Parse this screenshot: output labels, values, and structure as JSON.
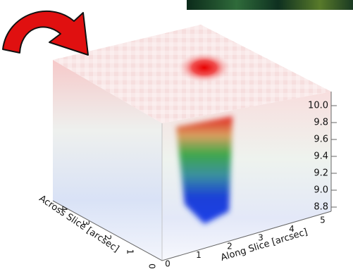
{
  "axes": {
    "along_slice": {
      "label": "Along Slice [arcsec]",
      "ticks": [
        "0",
        "1",
        "2",
        "3",
        "4",
        "5"
      ]
    },
    "across_slice": {
      "label": "Across Slice [arcsec]",
      "ticks": [
        "0",
        "1",
        "2",
        "3",
        "4"
      ]
    },
    "wavelength": {
      "ticks": [
        "10.0",
        "9.8",
        "9.6",
        "9.4",
        "9.2",
        "9.0",
        "8.8"
      ]
    }
  }
}
